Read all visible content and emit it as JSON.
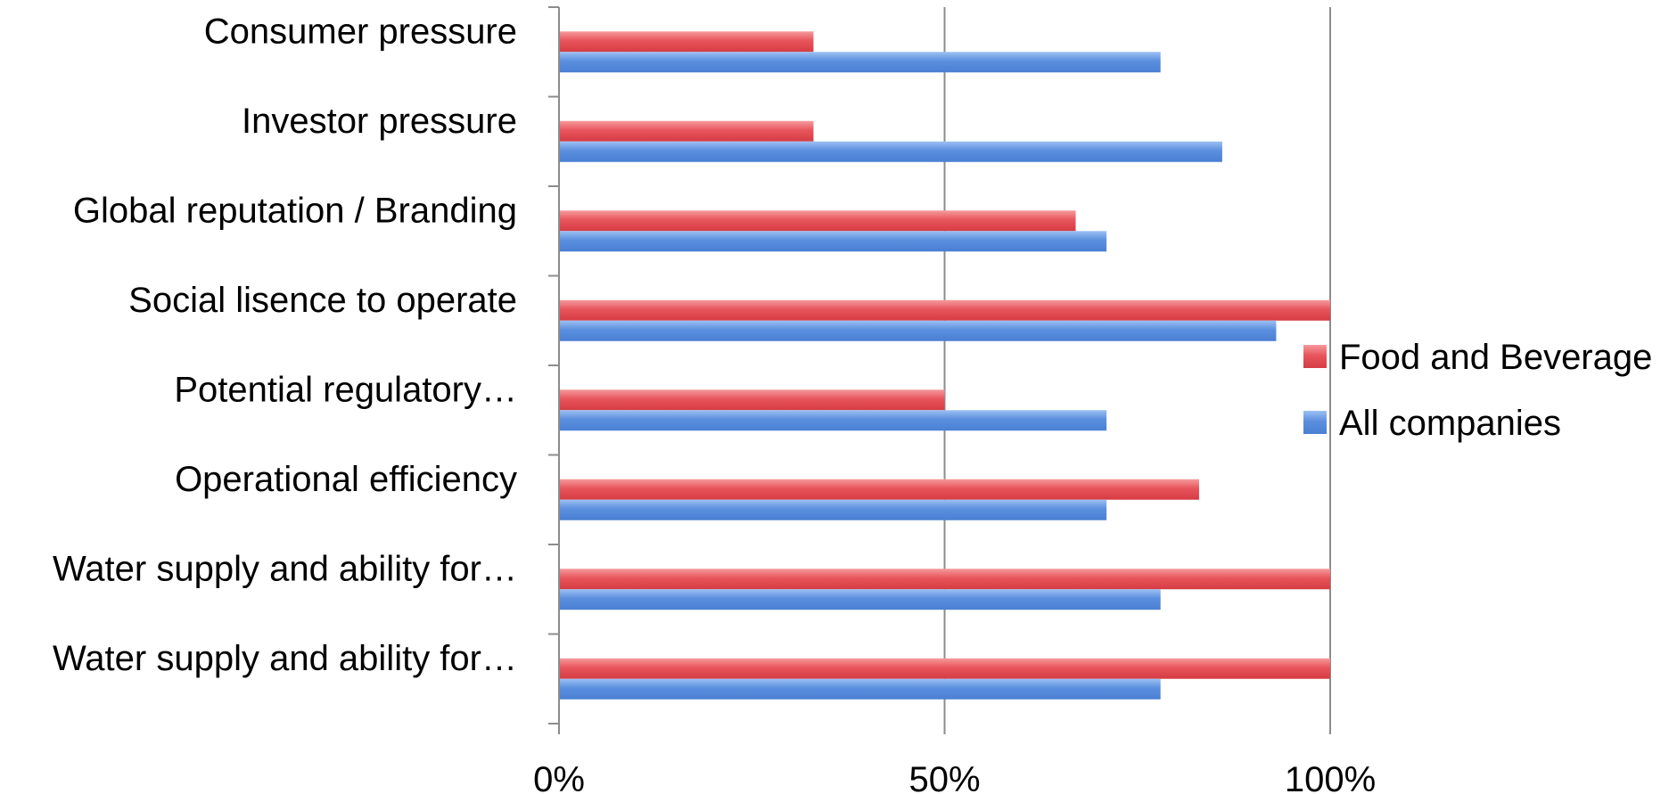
{
  "chart_data": {
    "type": "bar",
    "orientation": "horizontal",
    "title": "",
    "xlabel": "",
    "ylabel": "",
    "categories": [
      "Consumer pressure",
      "Investor pressure",
      "Global reputation / Branding",
      "Social lisence to operate",
      "Potential regulatory…",
      "Operational efficiency",
      "Water supply and ability for…",
      "Water supply and ability for…"
    ],
    "series": [
      {
        "name": "Food and Beverage",
        "color": "#e8555c",
        "values": [
          0.33,
          0.33,
          0.67,
          1.0,
          0.5,
          0.83,
          1.0,
          1.0
        ]
      },
      {
        "name": "All companies",
        "color": "#5b8fde",
        "values": [
          0.78,
          0.86,
          0.71,
          0.93,
          0.71,
          0.71,
          0.78,
          0.78
        ]
      }
    ],
    "xlim": [
      0,
      1
    ],
    "xticks": [
      {
        "value": 0,
        "label": "0%"
      },
      {
        "value": 0.5,
        "label": "50%"
      },
      {
        "value": 1,
        "label": "100%"
      }
    ],
    "grid": true,
    "legend_position": "right"
  }
}
